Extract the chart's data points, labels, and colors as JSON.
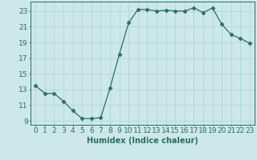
{
  "x": [
    0,
    1,
    2,
    3,
    4,
    5,
    6,
    7,
    8,
    9,
    10,
    11,
    12,
    13,
    14,
    15,
    16,
    17,
    18,
    19,
    20,
    21,
    22,
    23
  ],
  "y": [
    13.5,
    12.5,
    12.5,
    11.5,
    10.3,
    9.3,
    9.3,
    9.4,
    13.2,
    17.5,
    21.5,
    23.2,
    23.2,
    23.0,
    23.1,
    23.0,
    23.0,
    23.4,
    22.8,
    23.4,
    21.3,
    20.0,
    19.5,
    18.9
  ],
  "line_color": "#2e6e5e",
  "marker": "D",
  "marker_size": 2.5,
  "bg_color": "#cce8ea",
  "grid_color": "#b0d8da",
  "xlabel": "Humidex (Indice chaleur)",
  "ylim": [
    8.5,
    24.2
  ],
  "xlim": [
    -0.5,
    23.5
  ],
  "yticks": [
    9,
    11,
    13,
    15,
    17,
    19,
    21,
    23
  ],
  "xticks": [
    0,
    1,
    2,
    3,
    4,
    5,
    6,
    7,
    8,
    9,
    10,
    11,
    12,
    13,
    14,
    15,
    16,
    17,
    18,
    19,
    20,
    21,
    22,
    23
  ],
  "xlabel_fontsize": 7,
  "tick_fontsize": 6.5
}
